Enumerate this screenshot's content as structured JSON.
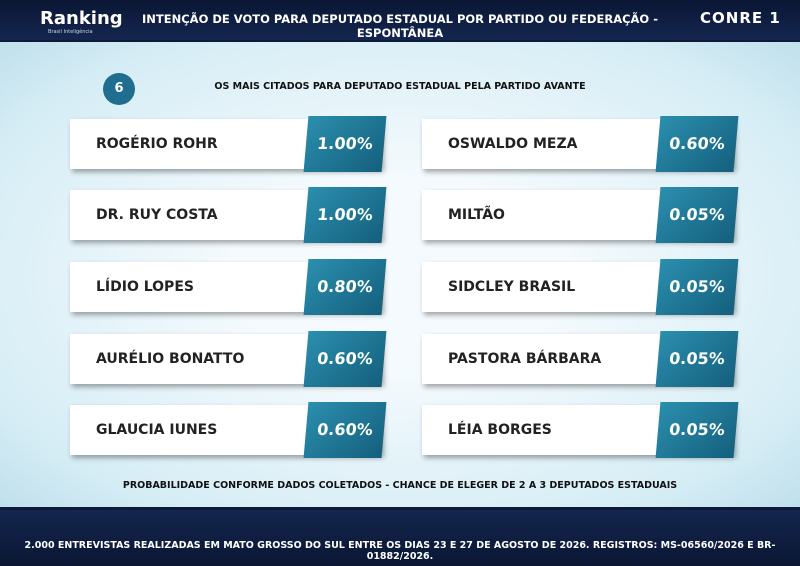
{
  "header": {
    "logo": "Ranking",
    "logo_tagline": "Brasil Inteligência",
    "title": "INTENÇÃO DE VOTO PARA DEPUTADO ESTADUAL POR PARTIDO OU FEDERAÇÃO - ESPONTÂNEA",
    "brand": "CONRE 1"
  },
  "section": {
    "number": "6",
    "subtitle": "OS MAIS CITADOS PARA DEPUTADO ESTADUAL PELA PARTIDO AVANTE"
  },
  "columns": [
    [
      {
        "name": "ROGÉRIO ROHR",
        "value": "1.00%"
      },
      {
        "name": "DR. RUY COSTA",
        "value": "1.00%"
      },
      {
        "name": "LÍDIO LOPES",
        "value": "0.80%"
      },
      {
        "name": "AURÉLIO BONATTO",
        "value": "0.60%"
      },
      {
        "name": "GLAUCIA IUNES",
        "value": "0.60%"
      }
    ],
    [
      {
        "name": "OSWALDO MEZA",
        "value": "0.60%"
      },
      {
        "name": "MILTÃO",
        "value": "0.05%"
      },
      {
        "name": "SIDCLEY BRASIL",
        "value": "0.05%"
      },
      {
        "name": "PASTORA BÁRBARA",
        "value": "0.05%"
      },
      {
        "name": "LÉIA BORGES",
        "value": "0.05%"
      }
    ]
  ],
  "note": "PROBABILIDADE CONFORME DADOS COLETADOS - CHANCE DE ELEGER DE 2 A 3 DEPUTADOS ESTADUAIS",
  "footer": "2.000 ENTREVISTAS REALIZADAS EM MATO GROSSO DO SUL ENTRE OS DIAS 23 E 27 DE AGOSTO DE 2026. REGISTROS: MS-06560/2026 E BR-01882/2026."
}
